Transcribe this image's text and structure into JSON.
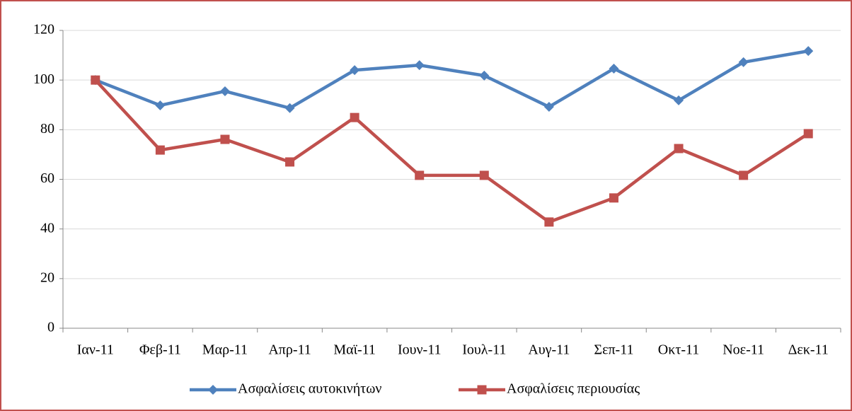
{
  "chart_data": {
    "type": "line",
    "categories": [
      "Ιαν-11",
      "Φεβ-11",
      "Μαρ-11",
      "Απρ-11",
      "Μαϊ-11",
      "Ιουν-11",
      "Ιουλ-11",
      "Αυγ-11",
      "Σεπ-11",
      "Οκτ-11",
      "Νοε-11",
      "Δεκ-11"
    ],
    "series": [
      {
        "name": "Ασφαλίσεις αυτοκινήτων",
        "color": "#4f81bd",
        "marker": "diamond",
        "values": [
          100,
          89.8,
          95.5,
          88.7,
          104,
          106,
          101.8,
          89.2,
          104.6,
          91.8,
          107.2,
          111.7
        ]
      },
      {
        "name": "Ασφαλίσεις περιουσίας",
        "color": "#c0504d",
        "marker": "square",
        "values": [
          100,
          71.8,
          76.1,
          67,
          84.9,
          61.6,
          61.6,
          42.8,
          52.5,
          72.4,
          61.6,
          78.4
        ]
      }
    ],
    "ylim": [
      0,
      120
    ],
    "yticks": [
      0,
      20,
      40,
      60,
      80,
      100,
      120
    ],
    "grid": true,
    "legend": "bottom"
  }
}
